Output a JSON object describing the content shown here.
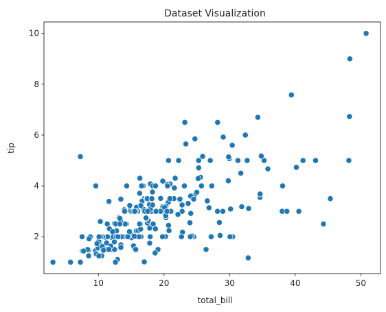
{
  "chart_data": {
    "type": "scatter",
    "title": "Dataset Visualization",
    "xlabel": "total_bill",
    "ylabel": "tip",
    "xlim": [
      1.7,
      53.0
    ],
    "ylim": [
      0.55,
      10.45
    ],
    "xticks": [
      10,
      20,
      30,
      40,
      50
    ],
    "yticks": [
      2,
      4,
      6,
      8,
      10
    ],
    "grid": false,
    "marker_color": "#1f77b4",
    "marker_edge_color": "#ffffff",
    "points": [
      [
        16.99,
        1.01
      ],
      [
        10.34,
        1.66
      ],
      [
        21.01,
        3.5
      ],
      [
        23.68,
        3.31
      ],
      [
        24.59,
        3.61
      ],
      [
        25.29,
        4.71
      ],
      [
        8.77,
        2.0
      ],
      [
        26.88,
        3.12
      ],
      [
        15.04,
        1.96
      ],
      [
        14.78,
        3.23
      ],
      [
        10.27,
        1.71
      ],
      [
        35.26,
        5.0
      ],
      [
        15.42,
        1.57
      ],
      [
        18.43,
        3.0
      ],
      [
        14.83,
        3.02
      ],
      [
        21.58,
        3.92
      ],
      [
        10.33,
        1.67
      ],
      [
        16.29,
        3.71
      ],
      [
        16.97,
        3.5
      ],
      [
        20.65,
        3.35
      ],
      [
        17.92,
        4.08
      ],
      [
        20.29,
        2.75
      ],
      [
        15.77,
        2.23
      ],
      [
        39.42,
        7.58
      ],
      [
        19.82,
        3.18
      ],
      [
        17.81,
        2.34
      ],
      [
        13.37,
        2.0
      ],
      [
        12.69,
        2.0
      ],
      [
        21.7,
        4.3
      ],
      [
        19.65,
        3.0
      ],
      [
        9.55,
        1.45
      ],
      [
        18.35,
        2.5
      ],
      [
        15.06,
        3.0
      ],
      [
        20.69,
        2.45
      ],
      [
        17.78,
        3.27
      ],
      [
        24.06,
        3.6
      ],
      [
        16.31,
        2.0
      ],
      [
        16.93,
        3.07
      ],
      [
        18.69,
        2.31
      ],
      [
        31.27,
        5.0
      ],
      [
        16.04,
        2.24
      ],
      [
        17.46,
        2.54
      ],
      [
        13.94,
        3.06
      ],
      [
        9.68,
        1.32
      ],
      [
        30.4,
        5.6
      ],
      [
        18.29,
        3.0
      ],
      [
        22.23,
        5.0
      ],
      [
        32.4,
        6.0
      ],
      [
        28.55,
        2.05
      ],
      [
        18.04,
        3.0
      ],
      [
        12.54,
        2.5
      ],
      [
        10.29,
        2.6
      ],
      [
        34.81,
        5.2
      ],
      [
        9.94,
        1.56
      ],
      [
        25.56,
        4.34
      ],
      [
        19.49,
        3.51
      ],
      [
        38.01,
        3.0
      ],
      [
        26.41,
        1.5
      ],
      [
        11.24,
        1.76
      ],
      [
        48.27,
        6.73
      ],
      [
        20.29,
        3.21
      ],
      [
        13.81,
        2.0
      ],
      [
        11.02,
        1.98
      ],
      [
        18.29,
        3.76
      ],
      [
        17.59,
        2.64
      ],
      [
        20.08,
        3.15
      ],
      [
        16.45,
        2.47
      ],
      [
        3.07,
        1.0
      ],
      [
        20.23,
        2.01
      ],
      [
        15.01,
        2.09
      ],
      [
        12.02,
        1.97
      ],
      [
        17.07,
        3.0
      ],
      [
        26.86,
        3.14
      ],
      [
        25.28,
        5.0
      ],
      [
        14.73,
        2.2
      ],
      [
        10.51,
        1.25
      ],
      [
        17.92,
        3.08
      ],
      [
        27.2,
        4.0
      ],
      [
        22.76,
        3.0
      ],
      [
        17.29,
        2.71
      ],
      [
        19.44,
        3.0
      ],
      [
        16.66,
        3.4
      ],
      [
        10.07,
        1.83
      ],
      [
        32.68,
        5.0
      ],
      [
        15.98,
        2.03
      ],
      [
        34.83,
        5.17
      ],
      [
        13.03,
        2.0
      ],
      [
        18.28,
        4.0
      ],
      [
        24.71,
        5.85
      ],
      [
        21.16,
        3.0
      ],
      [
        28.97,
        3.0
      ],
      [
        22.49,
        3.5
      ],
      [
        5.75,
        1.0
      ],
      [
        16.32,
        4.3
      ],
      [
        22.75,
        3.25
      ],
      [
        40.17,
        4.73
      ],
      [
        27.28,
        4.0
      ],
      [
        12.03,
        1.5
      ],
      [
        21.01,
        3.0
      ],
      [
        12.46,
        1.5
      ],
      [
        11.35,
        2.5
      ],
      [
        15.38,
        3.0
      ],
      [
        44.3,
        2.5
      ],
      [
        22.42,
        3.48
      ],
      [
        20.92,
        4.08
      ],
      [
        15.36,
        1.64
      ],
      [
        20.49,
        4.06
      ],
      [
        25.21,
        4.29
      ],
      [
        18.24,
        3.76
      ],
      [
        14.31,
        4.0
      ],
      [
        14.0,
        3.0
      ],
      [
        7.25,
        1.0
      ],
      [
        38.07,
        4.0
      ],
      [
        23.95,
        2.55
      ],
      [
        25.71,
        4.0
      ],
      [
        17.31,
        3.5
      ],
      [
        29.93,
        5.07
      ],
      [
        10.65,
        1.5
      ],
      [
        12.43,
        1.8
      ],
      [
        24.08,
        2.92
      ],
      [
        11.69,
        2.31
      ],
      [
        13.42,
        1.68
      ],
      [
        14.26,
        2.5
      ],
      [
        15.95,
        2.0
      ],
      [
        12.48,
        2.52
      ],
      [
        29.8,
        4.2
      ],
      [
        8.52,
        1.48
      ],
      [
        14.52,
        2.0
      ],
      [
        11.38,
        2.0
      ],
      [
        22.82,
        2.18
      ],
      [
        19.08,
        1.5
      ],
      [
        20.27,
        2.83
      ],
      [
        11.17,
        1.5
      ],
      [
        12.26,
        2.0
      ],
      [
        18.26,
        3.25
      ],
      [
        8.51,
        1.25
      ],
      [
        10.33,
        2.0
      ],
      [
        14.15,
        2.0
      ],
      [
        16.0,
        2.0
      ],
      [
        13.16,
        2.75
      ],
      [
        17.47,
        3.5
      ],
      [
        34.3,
        6.7
      ],
      [
        41.19,
        5.0
      ],
      [
        27.05,
        5.0
      ],
      [
        16.43,
        2.3
      ],
      [
        8.35,
        1.5
      ],
      [
        18.64,
        1.36
      ],
      [
        11.87,
        1.63
      ],
      [
        9.78,
        1.73
      ],
      [
        7.51,
        2.0
      ],
      [
        14.07,
        2.5
      ],
      [
        13.13,
        2.0
      ],
      [
        17.26,
        2.74
      ],
      [
        24.55,
        2.0
      ],
      [
        19.77,
        2.0
      ],
      [
        29.85,
        5.14
      ],
      [
        48.17,
        5.0
      ],
      [
        25.0,
        3.75
      ],
      [
        13.39,
        2.61
      ],
      [
        16.49,
        2.0
      ],
      [
        21.5,
        3.5
      ],
      [
        12.66,
        2.5
      ],
      [
        16.21,
        2.0
      ],
      [
        13.81,
        2.0
      ],
      [
        17.51,
        3.0
      ],
      [
        24.52,
        3.48
      ],
      [
        20.76,
        2.24
      ],
      [
        31.71,
        4.5
      ],
      [
        10.59,
        1.61
      ],
      [
        10.63,
        2.0
      ],
      [
        50.81,
        10.0
      ],
      [
        15.81,
        3.16
      ],
      [
        7.25,
        5.15
      ],
      [
        31.85,
        3.18
      ],
      [
        16.82,
        4.0
      ],
      [
        32.9,
        3.11
      ],
      [
        17.89,
        2.0
      ],
      [
        14.48,
        2.0
      ],
      [
        9.6,
        4.0
      ],
      [
        34.63,
        3.55
      ],
      [
        34.65,
        3.68
      ],
      [
        23.33,
        5.65
      ],
      [
        45.35,
        3.5
      ],
      [
        23.17,
        6.5
      ],
      [
        40.55,
        3.0
      ],
      [
        20.69,
        5.0
      ],
      [
        20.9,
        3.5
      ],
      [
        30.46,
        2.0
      ],
      [
        18.15,
        3.5
      ],
      [
        23.1,
        4.0
      ],
      [
        15.69,
        1.5
      ],
      [
        19.81,
        4.19
      ],
      [
        28.44,
        2.56
      ],
      [
        15.48,
        2.02
      ],
      [
        16.58,
        4.0
      ],
      [
        7.56,
        1.44
      ],
      [
        10.34,
        2.0
      ],
      [
        43.11,
        5.0
      ],
      [
        13.0,
        2.0
      ],
      [
        13.51,
        2.0
      ],
      [
        18.71,
        4.0
      ],
      [
        12.74,
        2.01
      ],
      [
        13.0,
        2.0
      ],
      [
        16.4,
        2.5
      ],
      [
        20.53,
        4.0
      ],
      [
        16.47,
        3.23
      ],
      [
        26.59,
        3.41
      ],
      [
        38.73,
        3.0
      ],
      [
        24.27,
        2.03
      ],
      [
        12.76,
        2.23
      ],
      [
        30.06,
        2.0
      ],
      [
        25.89,
        5.16
      ],
      [
        48.33,
        9.0
      ],
      [
        13.27,
        2.5
      ],
      [
        28.17,
        6.5
      ],
      [
        12.9,
        1.1
      ],
      [
        28.15,
        3.0
      ],
      [
        11.59,
        1.5
      ],
      [
        7.74,
        1.44
      ],
      [
        30.14,
        3.09
      ],
      [
        12.16,
        2.2
      ],
      [
        13.42,
        3.48
      ],
      [
        8.58,
        1.92
      ],
      [
        15.98,
        3.0
      ],
      [
        13.42,
        1.58
      ],
      [
        16.27,
        2.5
      ],
      [
        10.09,
        2.0
      ],
      [
        20.45,
        3.0
      ],
      [
        13.28,
        2.72
      ],
      [
        22.12,
        2.88
      ],
      [
        24.01,
        2.0
      ],
      [
        15.69,
        3.0
      ],
      [
        11.61,
        3.39
      ],
      [
        10.77,
        1.47
      ],
      [
        15.53,
        3.0
      ],
      [
        10.07,
        1.25
      ],
      [
        12.6,
        1.0
      ],
      [
        32.83,
        1.17
      ],
      [
        35.83,
        4.67
      ],
      [
        29.03,
        5.92
      ],
      [
        27.18,
        2.0
      ],
      [
        22.67,
        2.0
      ],
      [
        17.82,
        1.75
      ],
      [
        18.78,
        3.0
      ]
    ]
  }
}
